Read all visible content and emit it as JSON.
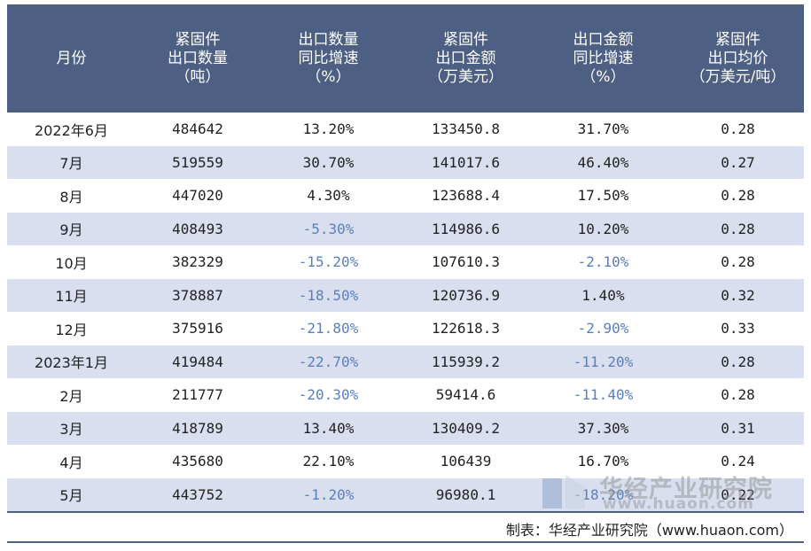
{
  "headers": [
    [
      "月份"
    ],
    [
      "紧固件",
      "出口数量",
      "（吨）"
    ],
    [
      "出口数量",
      "同比增速",
      "（%）"
    ],
    [
      "紧固件",
      "出口金额",
      "（万美元）"
    ],
    [
      "出口金额",
      "同比增速",
      "（%）"
    ],
    [
      "紧固件",
      "出口均价",
      "（万美元/吨）"
    ]
  ],
  "rows": [
    {
      "month": "2022年6月",
      "qty": "484642",
      "qty_yoy": "13.20%",
      "amount": "133450.8",
      "amount_yoy": "31.70%",
      "price": "0.28"
    },
    {
      "month": "7月",
      "qty": "519559",
      "qty_yoy": "30.70%",
      "amount": "141017.6",
      "amount_yoy": "46.40%",
      "price": "0.27"
    },
    {
      "month": "8月",
      "qty": "447020",
      "qty_yoy": "4.30%",
      "amount": "123688.4",
      "amount_yoy": "17.50%",
      "price": "0.28"
    },
    {
      "month": "9月",
      "qty": "408493",
      "qty_yoy": "-5.30%",
      "amount": "114986.6",
      "amount_yoy": "10.20%",
      "price": "0.28"
    },
    {
      "month": "10月",
      "qty": "382329",
      "qty_yoy": "-15.20%",
      "amount": "107610.3",
      "amount_yoy": "-2.10%",
      "price": "0.28"
    },
    {
      "month": "11月",
      "qty": "378887",
      "qty_yoy": "-18.50%",
      "amount": "120736.9",
      "amount_yoy": "1.40%",
      "price": "0.32"
    },
    {
      "month": "12月",
      "qty": "375916",
      "qty_yoy": "-21.80%",
      "amount": "122618.3",
      "amount_yoy": "-2.90%",
      "price": "0.33"
    },
    {
      "month": "2023年1月",
      "qty": "419484",
      "qty_yoy": "-22.70%",
      "amount": "115939.2",
      "amount_yoy": "-11.20%",
      "price": "0.28"
    },
    {
      "month": "2月",
      "qty": "211777",
      "qty_yoy": "-20.30%",
      "amount": "59414.6",
      "amount_yoy": "-11.40%",
      "price": "0.28"
    },
    {
      "month": "3月",
      "qty": "418789",
      "qty_yoy": "13.40%",
      "amount": "130409.2",
      "amount_yoy": "37.30%",
      "price": "0.31"
    },
    {
      "month": "4月",
      "qty": "435680",
      "qty_yoy": "22.10%",
      "amount": "106439",
      "amount_yoy": "16.70%",
      "price": "0.24"
    },
    {
      "month": "5月",
      "qty": "443752",
      "qty_yoy": "-1.20%",
      "amount": "96980.1",
      "amount_yoy": "-18.20%",
      "price": "0.22"
    }
  ],
  "footer": {
    "note": "制表：华经产业研究院（www.huaon.com）"
  },
  "watermark": {
    "name": "华经产业研究院",
    "url": "www.huaon.com",
    "logo": "huajing-logo-icon"
  },
  "colors": {
    "header_bg": "#4d5f82",
    "stripe": "#d9dfee",
    "negative": "#5a7fc0"
  }
}
